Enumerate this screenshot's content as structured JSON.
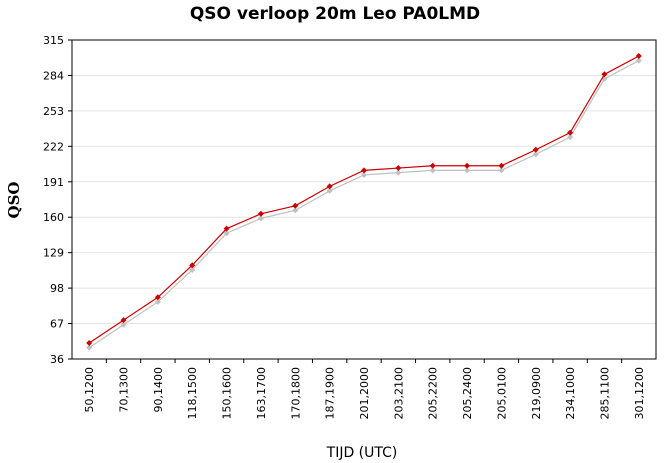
{
  "chart_data": {
    "type": "line",
    "title": "QSO verloop 20m Leo PA0LMD",
    "xlabel": "TIJD (UTC)",
    "ylabel": "QSO",
    "categories": [
      "50,1200",
      "70,1300",
      "90,1400",
      "118,1500",
      "150,1600",
      "163,1700",
      "170,1800",
      "187,1900",
      "201,2000",
      "203,2100",
      "205,2200",
      "205,2400",
      "205,0100",
      "219,0900",
      "234,1000",
      "285,1100",
      "301,1200"
    ],
    "series": [
      {
        "values": [
          50,
          70,
          90,
          118,
          150,
          163,
          170,
          187,
          201,
          203,
          205,
          205,
          205,
          219,
          234,
          285,
          301
        ],
        "color": "#cc0000"
      },
      {
        "values": [
          46,
          66,
          86,
          114,
          146,
          159,
          166,
          183,
          197,
          199,
          201,
          201,
          201,
          215,
          230,
          281,
          297
        ],
        "color": "#c0c0c0"
      }
    ],
    "yticks": [
      "315",
      "284",
      "253",
      "222",
      "191",
      "160",
      "129",
      "98",
      "67",
      "36"
    ],
    "ylim": [
      36,
      315
    ],
    "grid": true
  }
}
